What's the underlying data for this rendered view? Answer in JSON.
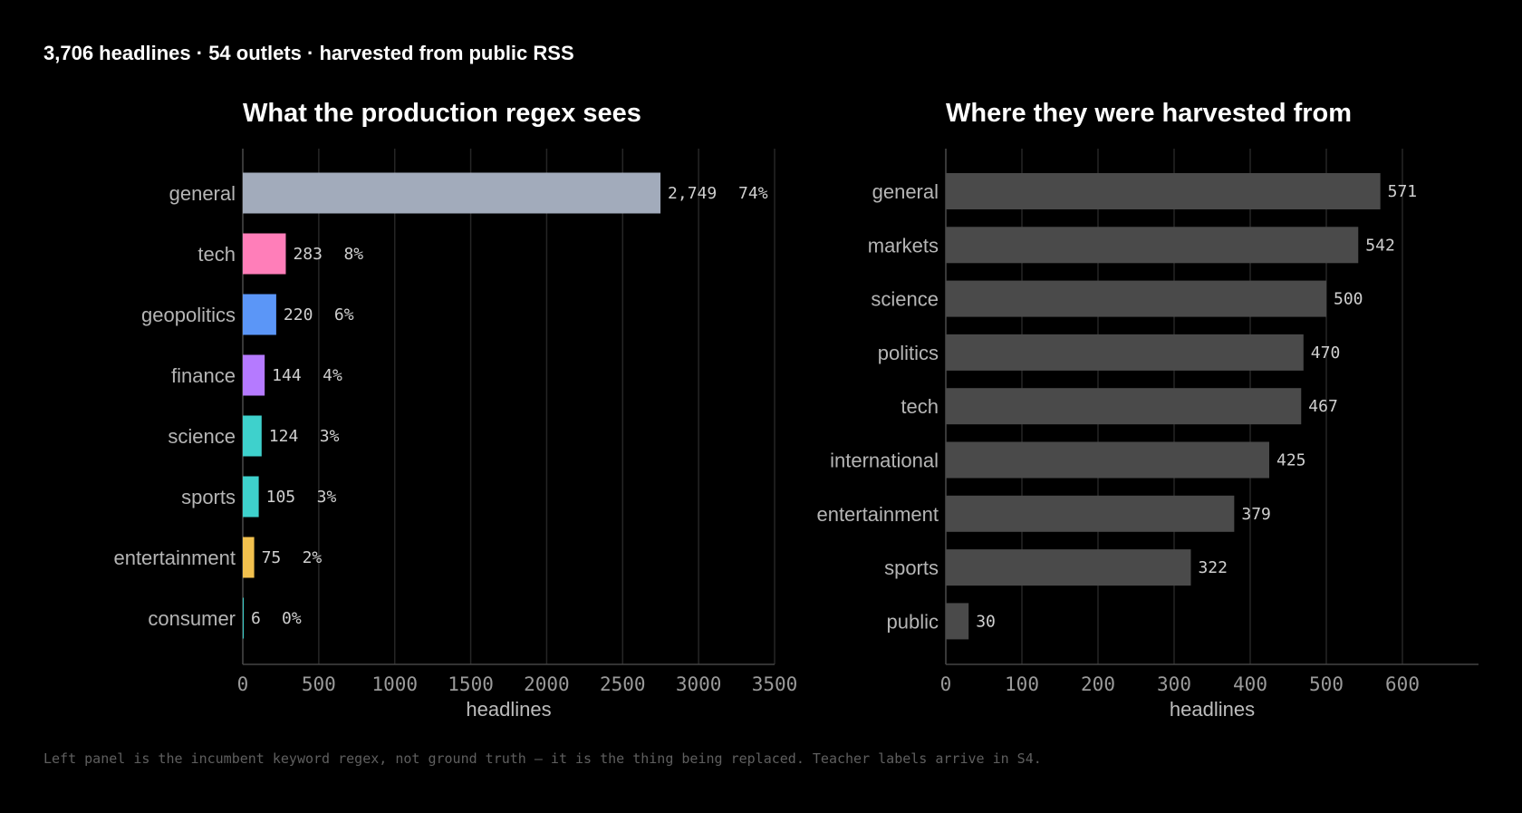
{
  "header": {
    "summary": "3,706 headlines · 54 outlets · harvested from public RSS"
  },
  "footer": {
    "note": "Left panel is the incumbent keyword regex, not ground truth — it is the thing being replaced. Teacher labels arrive in S4."
  },
  "chart_data": [
    {
      "type": "bar",
      "orientation": "horizontal",
      "title": "What the production regex sees",
      "xlabel": "headlines",
      "ylabel": "",
      "xlim": [
        0,
        3500
      ],
      "xticks": [
        0,
        500,
        1000,
        1500,
        2000,
        2500,
        3000,
        3500
      ],
      "grid": true,
      "categories": [
        "general",
        "tech",
        "geopolitics",
        "finance",
        "science",
        "sports",
        "entertainment",
        "consumer"
      ],
      "values": [
        2749,
        283,
        220,
        144,
        124,
        105,
        75,
        6
      ],
      "value_labels": [
        "2,749",
        "283",
        "220",
        "144",
        "124",
        "105",
        "75",
        "6"
      ],
      "percent_labels": [
        "74%",
        "8%",
        "6%",
        "4%",
        "3%",
        "3%",
        "2%",
        "0%"
      ],
      "colors": [
        "#a2abbb",
        "#ff7eb9",
        "#5b96f7",
        "#b57aff",
        "#3ed1cc",
        "#3ed1cc",
        "#f2c14e",
        "#3ed1cc"
      ]
    },
    {
      "type": "bar",
      "orientation": "horizontal",
      "title": "Where they were harvested from",
      "xlabel": "headlines",
      "ylabel": "",
      "xlim": [
        0,
        700
      ],
      "xticks": [
        0,
        100,
        200,
        300,
        400,
        500,
        600
      ],
      "grid": true,
      "categories": [
        "general",
        "markets",
        "science",
        "politics",
        "tech",
        "international",
        "entertainment",
        "sports",
        "public"
      ],
      "values": [
        571,
        542,
        500,
        470,
        467,
        425,
        379,
        322,
        30
      ],
      "value_labels": [
        "571",
        "542",
        "500",
        "470",
        "467",
        "425",
        "379",
        "322",
        "30"
      ],
      "colors": [
        "#4a4a4a"
      ]
    }
  ]
}
